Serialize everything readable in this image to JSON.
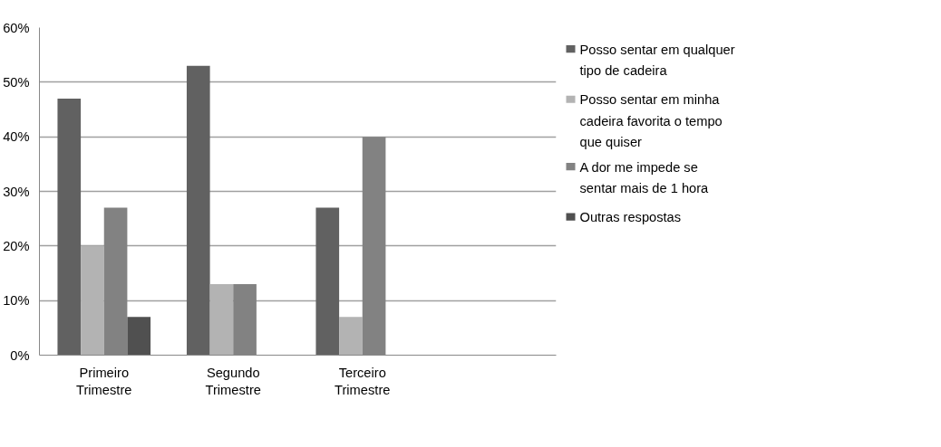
{
  "chart_data": {
    "type": "bar",
    "categories": [
      "Primeiro Trimestre",
      "Segundo Trimestre",
      "Terceiro Trimestre",
      null
    ],
    "series": [
      {
        "name": "Posso sentar em qualquer tipo de cadeira",
        "color": "#616161",
        "values": [
          47,
          53,
          27,
          null
        ]
      },
      {
        "name": "Posso sentar em minha cadeira favorita o tempo que quiser",
        "color": "#b3b3b3",
        "values": [
          20,
          13,
          7,
          null
        ]
      },
      {
        "name": "A dor me impede se sentar mais de 1 hora",
        "color": "#828282",
        "values": [
          27,
          13,
          40,
          null
        ]
      },
      {
        "name": "Outras respostas",
        "color": "#505050",
        "values": [
          7,
          null,
          null,
          null
        ]
      }
    ],
    "ylim": [
      0,
      60
    ],
    "yticks": [
      {
        "value": 0,
        "label": "0%"
      },
      {
        "value": 10,
        "label": "10%"
      },
      {
        "value": 20,
        "label": "20%"
      },
      {
        "value": 30,
        "label": "30%"
      },
      {
        "value": 40,
        "label": "40%"
      },
      {
        "value": 50,
        "label": "50%"
      },
      {
        "value": 60,
        "label": "60%"
      }
    ],
    "grid": "y",
    "legend": "right"
  }
}
